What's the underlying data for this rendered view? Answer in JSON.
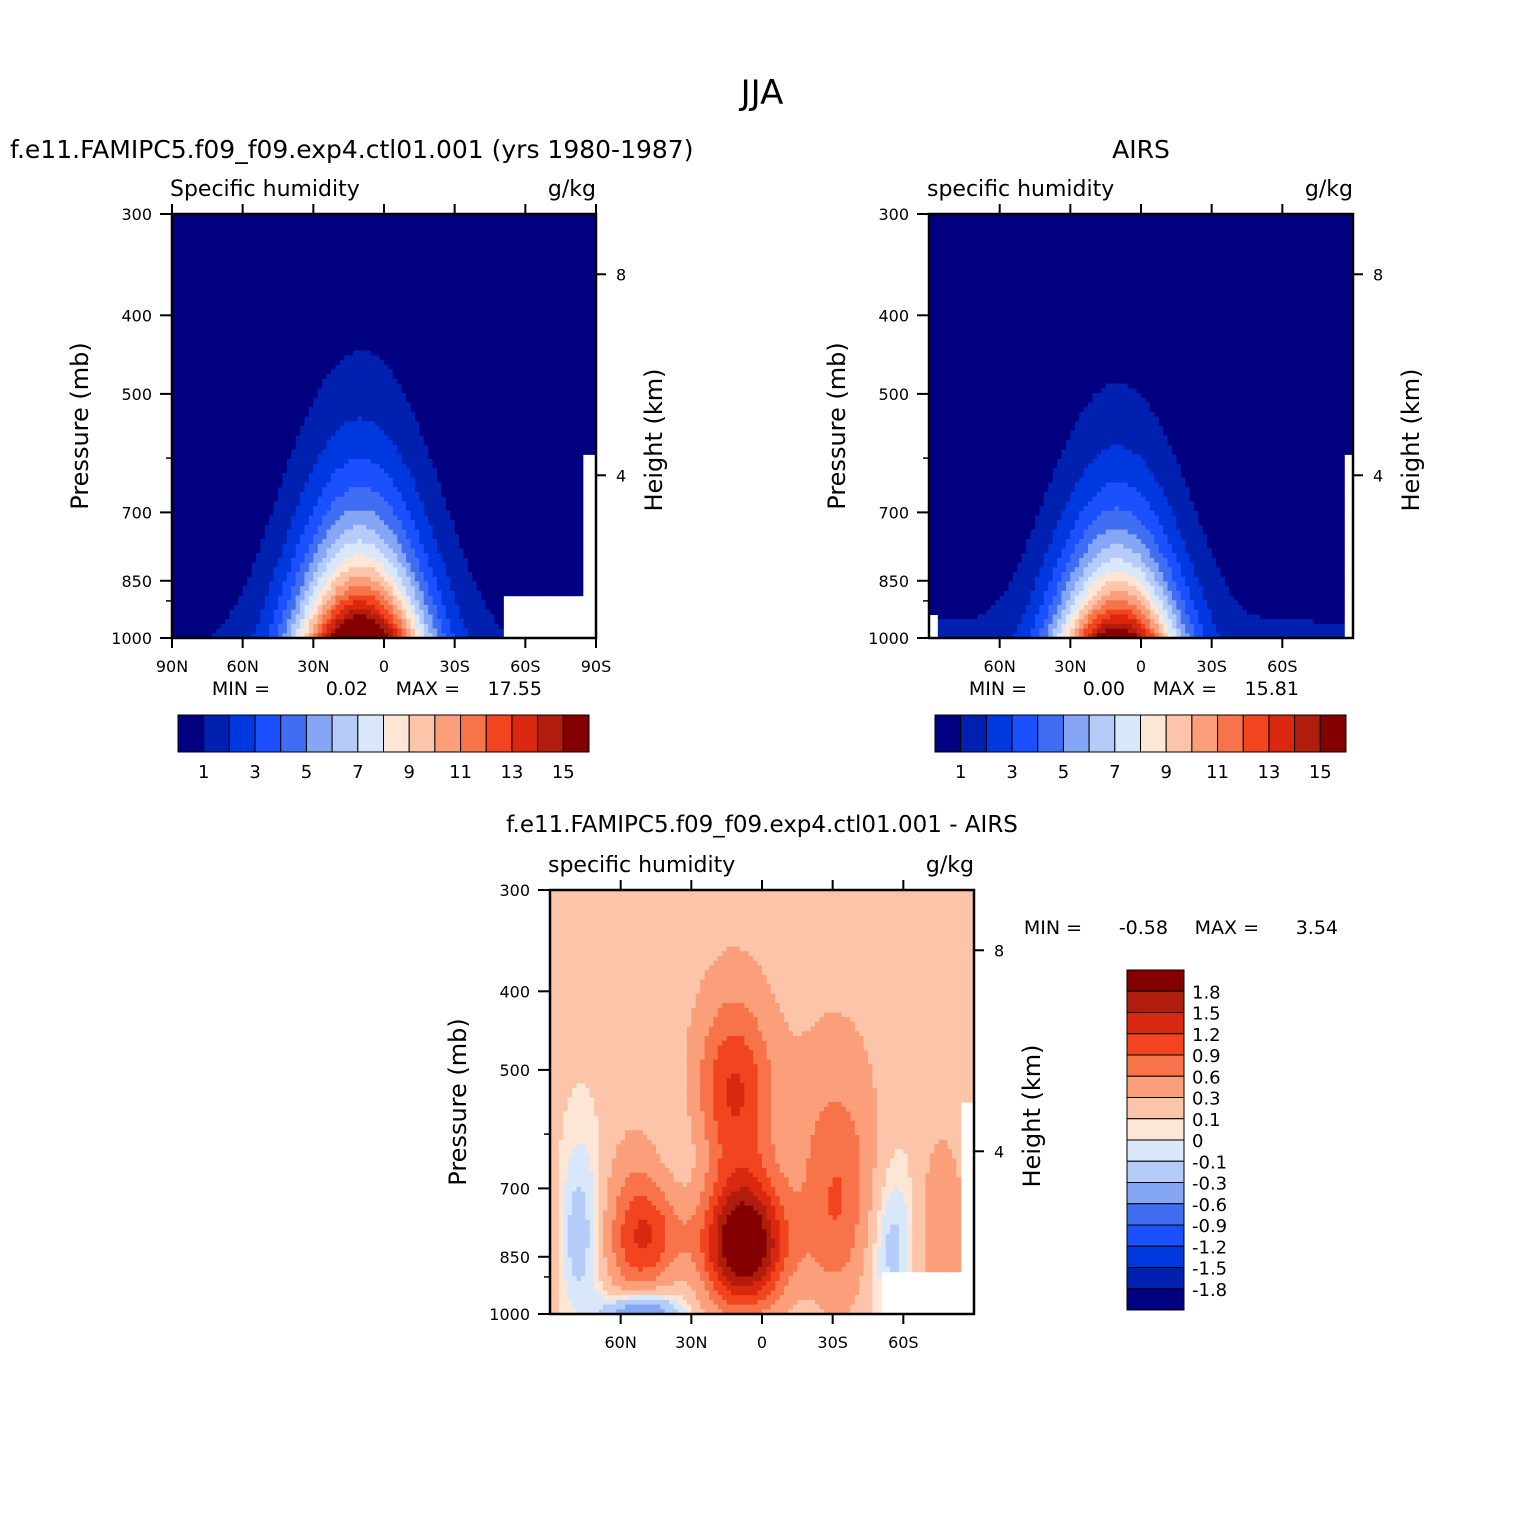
{
  "main_title": "JJA",
  "colors": {
    "levels16": [
      "#000080",
      "#0020b0",
      "#0038e0",
      "#1a50ff",
      "#3f6ef2",
      "#85a6f5",
      "#b5ccf8",
      "#d8e8fa",
      "#fde6d6",
      "#fcc4a8",
      "#fb9f7a",
      "#f77349",
      "#f2441f",
      "#d9280f",
      "#b01d0c",
      "#840000"
    ],
    "diff14": [
      "#000080",
      "#0020b0",
      "#0038e0",
      "#1a50ff",
      "#3f6ef2",
      "#85a6f5",
      "#b5ccf8",
      "#d8e8fa",
      "#fde6d6",
      "#fcc4a8",
      "#fb9f7a",
      "#f77349",
      "#f2441f",
      "#d9280f",
      "#b01d0c",
      "#840000"
    ]
  },
  "panels": [
    {
      "title": "f.e11.FAMIPC5.f09_f09.exp4.ctl01.001 (yrs 1980-1987)",
      "left_label": "Specific humidity",
      "right_label": "g/kg",
      "ylabel": "Pressure (mb)",
      "ylabel_right": "Height (km)",
      "yticks": [
        "300",
        "400",
        "500",
        "700",
        "850",
        "1000"
      ],
      "xticks": [
        "90N",
        "60N",
        "30N",
        "0",
        "30S",
        "60S",
        "90S"
      ],
      "height_ticks": [
        "8",
        "4"
      ],
      "min_label": "MIN =",
      "min_value": "0.02",
      "max_label": "MAX =",
      "max_value": "17.55",
      "colorbar_labels": [
        "1",
        "3",
        "5",
        "7",
        "9",
        "11",
        "13",
        "15"
      ]
    },
    {
      "title": "AIRS",
      "left_label": "specific humidity",
      "right_label": "g/kg",
      "ylabel": "Pressure (mb)",
      "ylabel_right": "Height (km)",
      "yticks": [
        "300",
        "400",
        "500",
        "700",
        "850",
        "1000"
      ],
      "xticks": [
        "60N",
        "30N",
        "0",
        "30S",
        "60S"
      ],
      "height_ticks": [
        "8",
        "4"
      ],
      "min_label": "MIN =",
      "min_value": "0.00",
      "max_label": "MAX =",
      "max_value": "15.81",
      "colorbar_labels": [
        "1",
        "3",
        "5",
        "7",
        "9",
        "11",
        "13",
        "15"
      ]
    },
    {
      "title": "f.e11.FAMIPC5.f09_f09.exp4.ctl01.001 - AIRS",
      "left_label": "specific humidity",
      "right_label": "g/kg",
      "ylabel": "Pressure (mb)",
      "ylabel_right": "Height (km)",
      "yticks": [
        "300",
        "400",
        "500",
        "700",
        "850",
        "1000"
      ],
      "xticks": [
        "60N",
        "30N",
        "0",
        "30S",
        "60S"
      ],
      "height_ticks": [
        "8",
        "4"
      ],
      "min_label": "MIN =",
      "min_value": "-0.58",
      "max_label": "MAX =",
      "max_value": "3.54",
      "colorbar_labels": [
        "1.8",
        "1.5",
        "1.2",
        "0.9",
        "0.6",
        "0.3",
        "0.1",
        "0",
        "-0.1",
        "-0.3",
        "-0.6",
        "-0.9",
        "-1.2",
        "-1.5",
        "-1.8"
      ]
    }
  ],
  "chart_data": [
    {
      "type": "heatmap",
      "title": "f.e11.FAMIPC5.f09_f09.exp4.ctl01.001 (yrs 1980-1987)",
      "variable": "Specific humidity",
      "units": "g/kg",
      "xlabel": "",
      "ylabel": "Pressure (mb)",
      "x_ticks": [
        "90N",
        "60N",
        "30N",
        "0",
        "30S",
        "60S",
        "90S"
      ],
      "y_ticks": [
        300,
        400,
        500,
        700,
        850,
        1000
      ],
      "y_scale": "log",
      "ylim": [
        1000,
        300
      ],
      "secondary_ylabel": "Height (km)",
      "secondary_ticks": [
        8,
        4
      ],
      "contour_levels": [
        1,
        2,
        3,
        4,
        5,
        6,
        7,
        8,
        9,
        10,
        11,
        12,
        13,
        14,
        15
      ],
      "min": 0.02,
      "max": 17.55,
      "peak_location": {
        "lat": "10N",
        "pressure": 1000
      }
    },
    {
      "type": "heatmap",
      "title": "AIRS",
      "variable": "specific humidity",
      "units": "g/kg",
      "xlabel": "",
      "ylabel": "Pressure (mb)",
      "x_ticks": [
        "60N",
        "30N",
        "0",
        "30S",
        "60S"
      ],
      "y_ticks": [
        300,
        400,
        500,
        700,
        850,
        1000
      ],
      "y_scale": "log",
      "ylim": [
        1000,
        300
      ],
      "secondary_ylabel": "Height (km)",
      "secondary_ticks": [
        8,
        4
      ],
      "contour_levels": [
        1,
        2,
        3,
        4,
        5,
        6,
        7,
        8,
        9,
        10,
        11,
        12,
        13,
        14,
        15
      ],
      "min": 0.0,
      "max": 15.81,
      "peak_location": {
        "lat": "10N",
        "pressure": 1000
      }
    },
    {
      "type": "heatmap",
      "title": "f.e11.FAMIPC5.f09_f09.exp4.ctl01.001 - AIRS",
      "variable": "specific humidity",
      "units": "g/kg",
      "xlabel": "",
      "ylabel": "Pressure (mb)",
      "x_ticks": [
        "60N",
        "30N",
        "0",
        "30S",
        "60S"
      ],
      "y_ticks": [
        300,
        400,
        500,
        700,
        850,
        1000
      ],
      "y_scale": "log",
      "ylim": [
        1000,
        300
      ],
      "secondary_ylabel": "Height (km)",
      "secondary_ticks": [
        8,
        4
      ],
      "contour_levels": [
        -1.8,
        -1.5,
        -1.2,
        -0.9,
        -0.6,
        -0.3,
        -0.1,
        0,
        0.1,
        0.3,
        0.6,
        0.9,
        1.2,
        1.5,
        1.8
      ],
      "min": -0.58,
      "max": 3.54
    }
  ]
}
